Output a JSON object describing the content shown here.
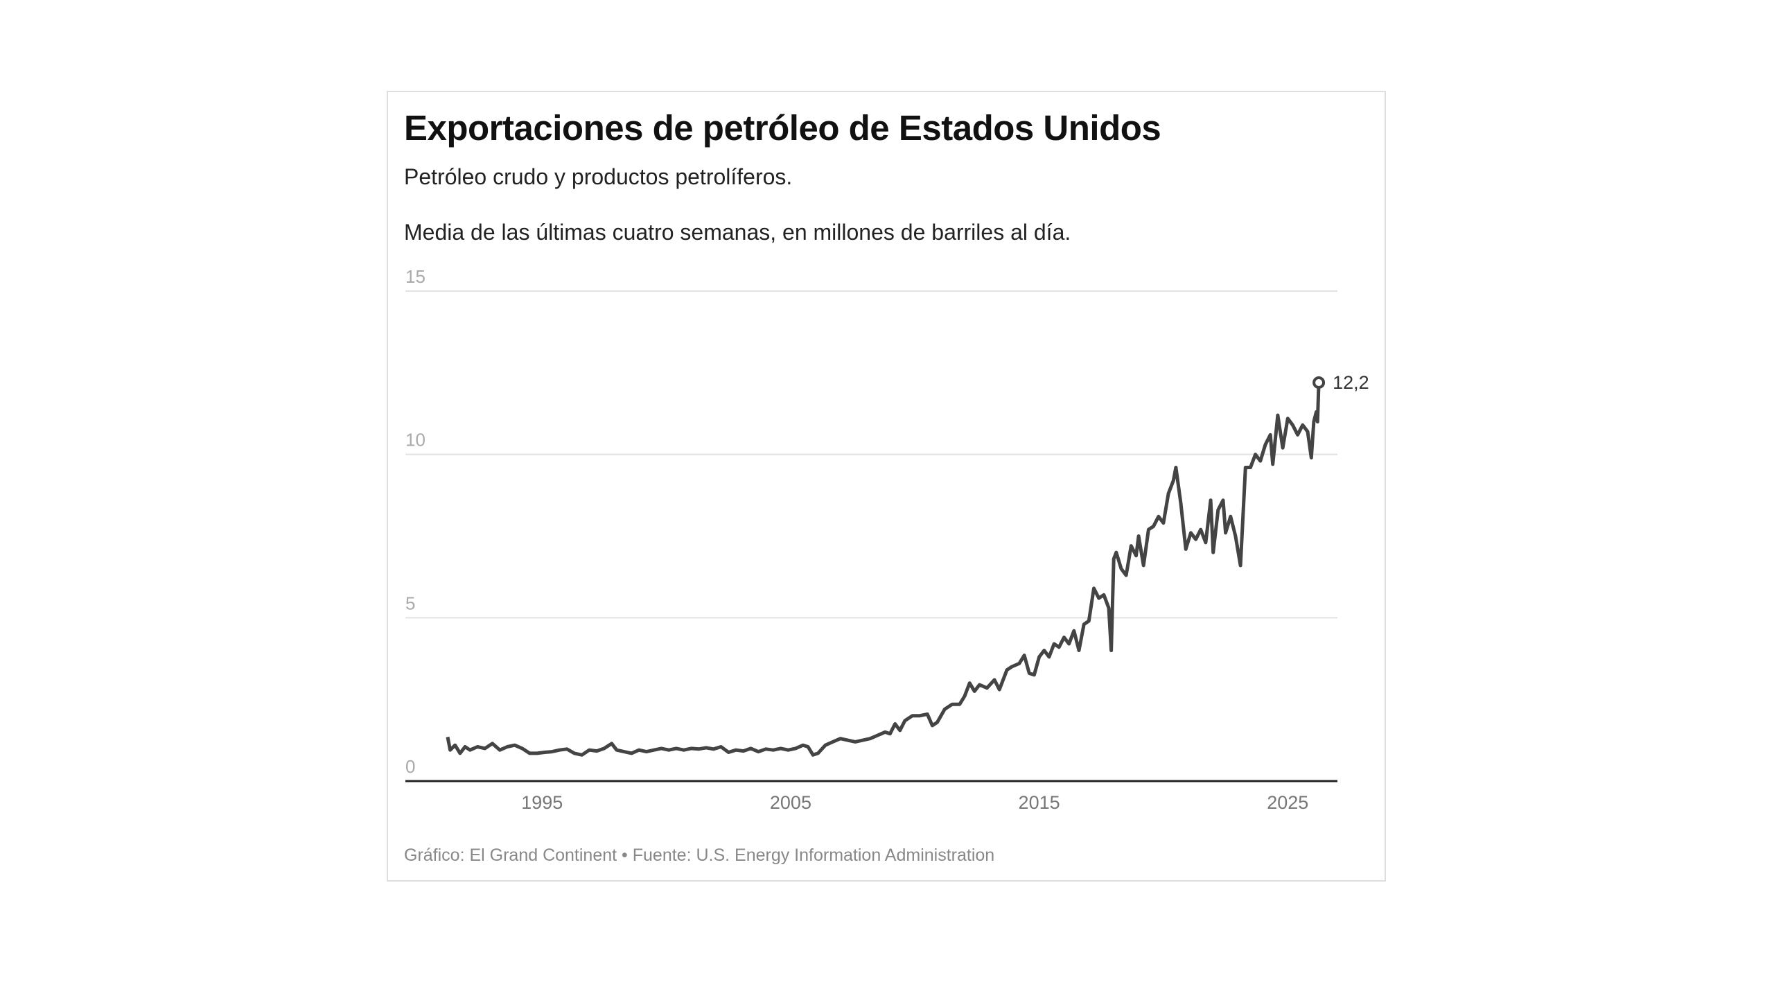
{
  "chart_data": {
    "type": "line",
    "title": "Exportaciones de petróleo de Estados Unidos",
    "subtitle": "Petróleo crudo y productos petrolíferos.",
    "description": "Media de las últimas cuatro semanas, en millones de barriles al día.",
    "footer": "Gráfico: El Grand Continent • Fuente: U.S. Energy Information Administration",
    "xlim": [
      1989.5,
      2027
    ],
    "ylim": [
      0,
      15
    ],
    "x_ticks": [
      "1995",
      "2005",
      "2015",
      "2025"
    ],
    "y_ticks": [
      "0",
      "5",
      "10",
      "15"
    ],
    "grid": true,
    "line_color": "#444444",
    "end_label": "12,2",
    "points": [
      [
        1991.2,
        1.35
      ],
      [
        1991.3,
        0.95
      ],
      [
        1991.5,
        1.1
      ],
      [
        1991.7,
        0.85
      ],
      [
        1991.9,
        1.05
      ],
      [
        1992.1,
        0.95
      ],
      [
        1992.4,
        1.05
      ],
      [
        1992.7,
        1.0
      ],
      [
        1993.0,
        1.15
      ],
      [
        1993.3,
        0.95
      ],
      [
        1993.6,
        1.05
      ],
      [
        1993.9,
        1.1
      ],
      [
        1994.2,
        1.0
      ],
      [
        1994.5,
        0.85
      ],
      [
        1994.8,
        0.85
      ],
      [
        1995.1,
        0.88
      ],
      [
        1995.4,
        0.9
      ],
      [
        1995.7,
        0.95
      ],
      [
        1996.0,
        0.98
      ],
      [
        1996.3,
        0.85
      ],
      [
        1996.6,
        0.8
      ],
      [
        1996.9,
        0.95
      ],
      [
        1997.2,
        0.92
      ],
      [
        1997.5,
        1.0
      ],
      [
        1997.8,
        1.15
      ],
      [
        1998.0,
        0.95
      ],
      [
        1998.3,
        0.9
      ],
      [
        1998.6,
        0.85
      ],
      [
        1998.9,
        0.95
      ],
      [
        1999.2,
        0.9
      ],
      [
        1999.5,
        0.95
      ],
      [
        1999.8,
        1.0
      ],
      [
        2000.1,
        0.95
      ],
      [
        2000.4,
        1.0
      ],
      [
        2000.7,
        0.95
      ],
      [
        2001.0,
        1.0
      ],
      [
        2001.3,
        0.98
      ],
      [
        2001.6,
        1.02
      ],
      [
        2001.9,
        0.98
      ],
      [
        2002.2,
        1.05
      ],
      [
        2002.5,
        0.88
      ],
      [
        2002.8,
        0.95
      ],
      [
        2003.1,
        0.92
      ],
      [
        2003.4,
        1.0
      ],
      [
        2003.7,
        0.9
      ],
      [
        2004.0,
        0.98
      ],
      [
        2004.3,
        0.95
      ],
      [
        2004.6,
        1.0
      ],
      [
        2004.9,
        0.95
      ],
      [
        2005.2,
        1.0
      ],
      [
        2005.5,
        1.1
      ],
      [
        2005.7,
        1.05
      ],
      [
        2005.9,
        0.8
      ],
      [
        2006.1,
        0.85
      ],
      [
        2006.4,
        1.1
      ],
      [
        2006.7,
        1.2
      ],
      [
        2007.0,
        1.3
      ],
      [
        2007.3,
        1.25
      ],
      [
        2007.6,
        1.2
      ],
      [
        2007.9,
        1.25
      ],
      [
        2008.2,
        1.3
      ],
      [
        2008.5,
        1.4
      ],
      [
        2008.8,
        1.5
      ],
      [
        2009.0,
        1.45
      ],
      [
        2009.2,
        1.75
      ],
      [
        2009.4,
        1.55
      ],
      [
        2009.6,
        1.85
      ],
      [
        2009.9,
        2.0
      ],
      [
        2010.2,
        2.0
      ],
      [
        2010.5,
        2.05
      ],
      [
        2010.7,
        1.7
      ],
      [
        2010.9,
        1.8
      ],
      [
        2011.2,
        2.2
      ],
      [
        2011.5,
        2.35
      ],
      [
        2011.8,
        2.35
      ],
      [
        2012.0,
        2.6
      ],
      [
        2012.2,
        3.0
      ],
      [
        2012.4,
        2.75
      ],
      [
        2012.6,
        2.95
      ],
      [
        2012.9,
        2.85
      ],
      [
        2013.2,
        3.1
      ],
      [
        2013.4,
        2.8
      ],
      [
        2013.7,
        3.4
      ],
      [
        2013.9,
        3.5
      ],
      [
        2014.2,
        3.6
      ],
      [
        2014.4,
        3.85
      ],
      [
        2014.6,
        3.3
      ],
      [
        2014.8,
        3.25
      ],
      [
        2015.0,
        3.8
      ],
      [
        2015.2,
        4.0
      ],
      [
        2015.4,
        3.8
      ],
      [
        2015.6,
        4.2
      ],
      [
        2015.8,
        4.1
      ],
      [
        2016.0,
        4.4
      ],
      [
        2016.2,
        4.2
      ],
      [
        2016.4,
        4.6
      ],
      [
        2016.6,
        4.0
      ],
      [
        2016.8,
        4.8
      ],
      [
        2017.0,
        4.9
      ],
      [
        2017.2,
        5.9
      ],
      [
        2017.4,
        5.6
      ],
      [
        2017.6,
        5.7
      ],
      [
        2017.8,
        5.3
      ],
      [
        2017.9,
        4.0
      ],
      [
        2018.0,
        6.8
      ],
      [
        2018.1,
        7.0
      ],
      [
        2018.3,
        6.5
      ],
      [
        2018.5,
        6.3
      ],
      [
        2018.7,
        7.2
      ],
      [
        2018.9,
        6.9
      ],
      [
        2019.0,
        7.5
      ],
      [
        2019.2,
        6.6
      ],
      [
        2019.4,
        7.7
      ],
      [
        2019.6,
        7.8
      ],
      [
        2019.8,
        8.1
      ],
      [
        2020.0,
        7.9
      ],
      [
        2020.2,
        8.8
      ],
      [
        2020.4,
        9.2
      ],
      [
        2020.5,
        9.6
      ],
      [
        2020.7,
        8.5
      ],
      [
        2020.9,
        7.1
      ],
      [
        2021.1,
        7.6
      ],
      [
        2021.3,
        7.4
      ],
      [
        2021.5,
        7.7
      ],
      [
        2021.7,
        7.3
      ],
      [
        2021.9,
        8.6
      ],
      [
        2022.0,
        7.0
      ],
      [
        2022.2,
        8.3
      ],
      [
        2022.4,
        8.6
      ],
      [
        2022.5,
        7.6
      ],
      [
        2022.7,
        8.1
      ],
      [
        2022.9,
        7.5
      ],
      [
        2023.1,
        6.6
      ],
      [
        2023.3,
        9.6
      ],
      [
        2023.5,
        9.6
      ],
      [
        2023.7,
        10.0
      ],
      [
        2023.9,
        9.8
      ],
      [
        2024.1,
        10.3
      ],
      [
        2024.3,
        10.6
      ],
      [
        2024.4,
        9.7
      ],
      [
        2024.6,
        11.2
      ],
      [
        2024.8,
        10.2
      ],
      [
        2025.0,
        11.1
      ],
      [
        2025.2,
        10.9
      ],
      [
        2025.4,
        10.6
      ],
      [
        2025.6,
        10.9
      ],
      [
        2025.8,
        10.7
      ],
      [
        2025.95,
        9.9
      ],
      [
        2026.05,
        11.0
      ],
      [
        2026.15,
        11.3
      ],
      [
        2026.2,
        11.0
      ],
      [
        2026.25,
        12.2
      ]
    ]
  }
}
